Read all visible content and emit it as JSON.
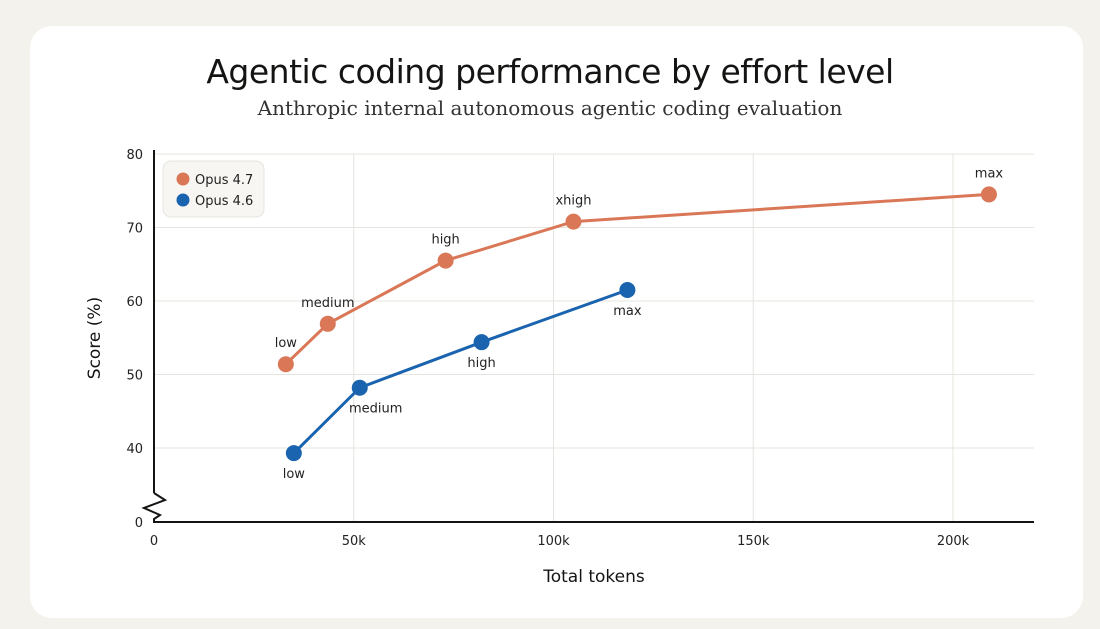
{
  "chart_data": {
    "type": "line",
    "title": "Agentic coding performance by effort level",
    "subtitle": "Anthropic internal autonomous agentic coding evaluation",
    "xlabel": "Total tokens",
    "ylabel": "Score (%)",
    "xlim": [
      0,
      220000
    ],
    "ylim": [
      0,
      80
    ],
    "y_axis_break": true,
    "x_ticks": [
      {
        "v": 0,
        "label": "0"
      },
      {
        "v": 50000,
        "label": "50k"
      },
      {
        "v": 100000,
        "label": "100k"
      },
      {
        "v": 150000,
        "label": "150k"
      },
      {
        "v": 200000,
        "label": "200k"
      }
    ],
    "y_ticks": [
      {
        "v": 0,
        "label": "0"
      },
      {
        "v": 40,
        "label": "40"
      },
      {
        "v": 50,
        "label": "50"
      },
      {
        "v": 60,
        "label": "60"
      },
      {
        "v": 70,
        "label": "70"
      },
      {
        "v": 80,
        "label": "80"
      }
    ],
    "grid": true,
    "legend_position": "top-left",
    "series": [
      {
        "name": "Opus 4.7",
        "color": "#d97757",
        "label_side": "above",
        "points": [
          {
            "x": 33000,
            "y": 51.4,
            "label": "low"
          },
          {
            "x": 43500,
            "y": 56.9,
            "label": "medium"
          },
          {
            "x": 73000,
            "y": 65.5,
            "label": "high"
          },
          {
            "x": 105000,
            "y": 70.8,
            "label": "xhigh"
          },
          {
            "x": 209000,
            "y": 74.5,
            "label": "max"
          }
        ]
      },
      {
        "name": "Opus 4.6",
        "color": "#1a63ae",
        "label_side": "below",
        "points": [
          {
            "x": 35000,
            "y": 39.3,
            "label": "low"
          },
          {
            "x": 51500,
            "y": 48.2,
            "label": "medium"
          },
          {
            "x": 82000,
            "y": 54.4,
            "label": "high"
          },
          {
            "x": 118500,
            "y": 61.5,
            "label": "max"
          }
        ]
      }
    ]
  }
}
